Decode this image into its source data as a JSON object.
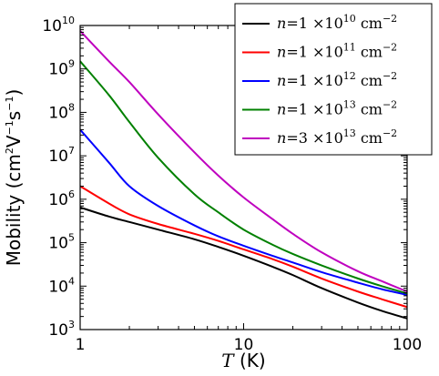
{
  "chart_data": {
    "type": "line",
    "xscale": "log",
    "yscale": "log",
    "xlim": [
      1,
      100
    ],
    "ylim": [
      1000,
      10000000000
    ],
    "xticks": [
      {
        "value": 1,
        "label": "1"
      },
      {
        "value": 10,
        "label": "10"
      },
      {
        "value": 100,
        "label": "100"
      }
    ],
    "yticks": [
      {
        "value": 1000,
        "base": "10",
        "exp": "3"
      },
      {
        "value": 10000,
        "base": "10",
        "exp": "4"
      },
      {
        "value": 100000,
        "base": "10",
        "exp": "5"
      },
      {
        "value": 1000000,
        "base": "10",
        "exp": "6"
      },
      {
        "value": 10000000,
        "base": "10",
        "exp": "7"
      },
      {
        "value": 100000000,
        "base": "10",
        "exp": "8"
      },
      {
        "value": 1000000000,
        "base": "10",
        "exp": "9"
      },
      {
        "value": 10000000000,
        "base": "10",
        "exp": "10"
      }
    ],
    "xlabel": {
      "symbol": "T",
      "unit": "(K)"
    },
    "ylabel": {
      "text": "Mobility (cm",
      "sup1": "2",
      "mid": "V",
      "sup2": "−1",
      "mid2": "s",
      "sup3": "−1",
      "end": ")"
    },
    "legend_position": "top-right",
    "grid": false,
    "series": [
      {
        "name": "n = 1 ×10^10 cm^-2",
        "label_parts": {
          "prefix": "n",
          "eq": "=",
          "coef": "1 ×10",
          "exp": "10",
          "unit": "cm",
          "unit_exp": "−2"
        },
        "color": "#000000",
        "x": [
          1,
          1.5,
          2,
          3,
          5,
          7,
          10,
          15,
          20,
          30,
          50,
          70,
          100
        ],
        "y": [
          650000,
          400000,
          300000,
          200000,
          120000,
          80000,
          50000,
          28000,
          18000,
          9000,
          4200,
          2700,
          1800
        ]
      },
      {
        "name": "n = 1 ×10^11 cm^-2",
        "label_parts": {
          "prefix": "n",
          "eq": "=",
          "coef": "1 ×10",
          "exp": "11",
          "unit": "cm",
          "unit_exp": "−2"
        },
        "color": "#ff0000",
        "x": [
          1,
          1.5,
          2,
          3,
          5,
          7,
          10,
          15,
          20,
          30,
          50,
          70,
          100
        ],
        "y": [
          2000000,
          800000,
          450000,
          270000,
          160000,
          110000,
          70000,
          42000,
          28000,
          15000,
          7500,
          5000,
          3300
        ]
      },
      {
        "name": "n = 1 ×10^12 cm^-2",
        "label_parts": {
          "prefix": "n",
          "eq": "=",
          "coef": "1 ×10",
          "exp": "12",
          "unit": "cm",
          "unit_exp": "−2"
        },
        "color": "#0000ff",
        "x": [
          1,
          1.5,
          2,
          3,
          5,
          7,
          10,
          15,
          20,
          30,
          50,
          70,
          100
        ],
        "y": [
          40000000,
          7000000,
          2000000,
          700000,
          250000,
          140000,
          85000,
          50000,
          35000,
          21000,
          12000,
          8500,
          6300
        ]
      },
      {
        "name": "n = 1 ×10^13 cm^-2",
        "label_parts": {
          "prefix": "n",
          "eq": "=",
          "coef": "1 ×10",
          "exp": "13",
          "unit": "cm",
          "unit_exp": "−2"
        },
        "color": "#008000",
        "x": [
          1,
          1.5,
          2,
          3,
          5,
          7,
          10,
          15,
          20,
          30,
          50,
          70,
          100
        ],
        "y": [
          1500000000,
          250000000,
          60000000,
          9000000,
          1300000,
          500000,
          200000,
          90000,
          55000,
          30000,
          15000,
          10000,
          6800
        ]
      },
      {
        "name": "n = 3 ×10^13 cm^-2",
        "label_parts": {
          "prefix": "n",
          "eq": "=",
          "coef": "3 ×10",
          "exp": "13",
          "unit": "cm",
          "unit_exp": "−2"
        },
        "color": "#bf00bf",
        "x": [
          1,
          1.5,
          2,
          3,
          5,
          7,
          10,
          15,
          20,
          30,
          50,
          70,
          100
        ],
        "y": [
          7500000000,
          1500000000,
          500000000,
          90000000,
          12000000,
          3500000,
          1100000,
          350000,
          160000,
          60000,
          22000,
          13000,
          7500
        ]
      }
    ]
  }
}
